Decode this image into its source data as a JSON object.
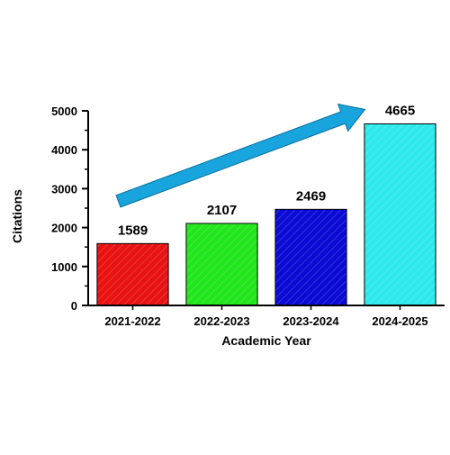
{
  "chart_data": {
    "type": "bar",
    "title": "",
    "xlabel": "Academic Year",
    "ylabel": "Citations",
    "categories": [
      "2021-2022",
      "2022-2023",
      "2023-2024",
      "2024-2025"
    ],
    "values": [
      1589,
      2107,
      2469,
      4665
    ],
    "data_labels": [
      "1589",
      "2107",
      "2469",
      "4665"
    ],
    "ylim": [
      0,
      5000
    ],
    "yticks": [
      0,
      1000,
      2000,
      3000,
      4000,
      5000
    ],
    "ytick_labels": [
      "0",
      "1000",
      "2000",
      "3000",
      "4000",
      "5000"
    ],
    "bar_colors": [
      "#e81212",
      "#22e61c",
      "#0b0bd6",
      "#2ee8ec"
    ],
    "bar_pattern": "diagonal-hatch",
    "grid": false,
    "legend": "none",
    "annotation": "upward trend arrow",
    "arrow_color": "#18a4dc"
  }
}
